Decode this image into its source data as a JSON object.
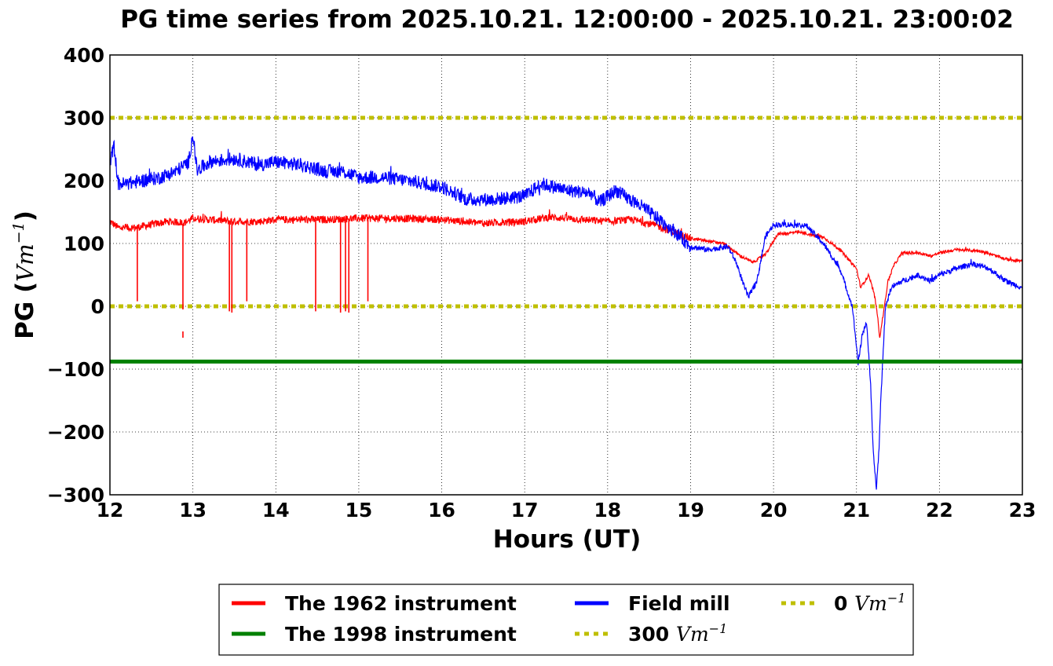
{
  "chart_data": {
    "type": "line",
    "title": "PG time series from 2025.10.21. 12:00:00 - 2025.10.21. 23:00:02",
    "xlabel": "Hours (UT)",
    "ylabel": "PG (",
    "ylabel_unit": "Vm",
    "ylabel_unit_exp": "−1",
    "ylabel_close": ")",
    "xlim": [
      12,
      23
    ],
    "ylim": [
      -300,
      400
    ],
    "xticks": [
      12,
      13,
      14,
      15,
      16,
      17,
      18,
      19,
      20,
      21,
      22,
      23
    ],
    "xtick_labels": [
      "12",
      "13",
      "14",
      "15",
      "16",
      "17",
      "18",
      "19",
      "20",
      "21",
      "22",
      "23"
    ],
    "yticks": [
      -300,
      -200,
      -100,
      0,
      100,
      200,
      300,
      400
    ],
    "ytick_labels": [
      "−300",
      "−200",
      "−100",
      "0",
      "100",
      "200",
      "300",
      "400"
    ],
    "grid": true,
    "legend_placement": "below-center",
    "series": [
      {
        "name": "The 1962 instrument",
        "color": "#ff0000",
        "style": "solid",
        "noise": 6,
        "x": [
          12.0,
          12.1,
          12.3,
          12.5,
          12.7,
          12.9,
          13.0,
          13.2,
          13.5,
          13.8,
          14.0,
          14.3,
          14.6,
          15.0,
          15.5,
          16.0,
          16.5,
          17.0,
          17.3,
          17.7,
          18.0,
          18.3,
          18.6,
          19.0,
          19.4,
          19.6,
          19.75,
          19.9,
          20.05,
          20.3,
          20.6,
          20.8,
          21.0,
          21.05,
          21.15,
          21.22,
          21.25,
          21.28,
          21.32,
          21.38,
          21.45,
          21.55,
          21.75,
          21.9,
          22.0,
          22.2,
          22.5,
          22.8,
          23.0
        ],
        "y": [
          135,
          125,
          125,
          130,
          135,
          133,
          140,
          138,
          135,
          135,
          138,
          138,
          138,
          140,
          140,
          138,
          132,
          135,
          142,
          138,
          135,
          138,
          128,
          108,
          100,
          80,
          70,
          82,
          115,
          118,
          110,
          90,
          60,
          30,
          50,
          15,
          -10,
          -50,
          -15,
          40,
          65,
          85,
          85,
          80,
          85,
          90,
          88,
          75,
          72
        ]
      },
      {
        "name": "Field mill",
        "color": "#0000ff",
        "style": "solid",
        "noise": 11,
        "x": [
          12.0,
          12.05,
          12.1,
          12.2,
          12.4,
          12.6,
          12.8,
          12.95,
          13.0,
          13.05,
          13.2,
          13.5,
          13.8,
          14.0,
          14.3,
          14.6,
          14.8,
          15.0,
          15.3,
          15.6,
          16.0,
          16.3,
          16.6,
          17.0,
          17.2,
          17.5,
          17.8,
          17.9,
          18.0,
          18.1,
          18.2,
          18.4,
          18.6,
          18.8,
          19.0,
          19.2,
          19.45,
          19.55,
          19.65,
          19.7,
          19.8,
          19.9,
          20.0,
          20.2,
          20.4,
          20.6,
          20.8,
          20.95,
          21.02,
          21.08,
          21.12,
          21.17,
          21.2,
          21.24,
          21.27,
          21.3,
          21.35,
          21.42,
          21.55,
          21.65,
          21.75,
          21.9,
          22.0,
          22.2,
          22.4,
          22.6,
          22.8,
          23.0
        ],
        "y": [
          230,
          255,
          195,
          195,
          200,
          205,
          215,
          230,
          275,
          215,
          230,
          235,
          225,
          230,
          225,
          215,
          215,
          205,
          205,
          200,
          190,
          170,
          170,
          175,
          195,
          185,
          180,
          165,
          175,
          185,
          175,
          160,
          140,
          120,
          95,
          90,
          95,
          70,
          30,
          15,
          40,
          110,
          130,
          130,
          128,
          100,
          60,
          0,
          -90,
          -40,
          -25,
          -120,
          -230,
          -290,
          -230,
          -130,
          0,
          30,
          40,
          45,
          50,
          40,
          50,
          60,
          68,
          60,
          40,
          30
        ]
      },
      {
        "name": "The 1998 instrument",
        "color": "#008000",
        "style": "solid",
        "noise": 0,
        "x": [
          12,
          23
        ],
        "y": [
          -88,
          -88
        ]
      },
      {
        "name": "300 Vm−1",
        "color": "#bfbf00",
        "style": "dotted",
        "noise": 0,
        "x": [
          12,
          23
        ],
        "y": [
          300,
          300
        ]
      },
      {
        "name": "0 Vm−1",
        "color": "#bfbf00",
        "style": "dotted",
        "noise": 0,
        "x": [
          12,
          23
        ],
        "y": [
          0,
          0
        ]
      }
    ],
    "spikes_1962": [
      {
        "x": 12.33,
        "y0": 128,
        "y1": 8
      },
      {
        "x": 12.88,
        "y0": 130,
        "y1": -5
      },
      {
        "x": 13.44,
        "y0": 135,
        "y1": -8
      },
      {
        "x": 13.47,
        "y0": 135,
        "y1": -10
      },
      {
        "x": 13.65,
        "y0": 138,
        "y1": 8
      },
      {
        "x": 14.48,
        "y0": 138,
        "y1": -8
      },
      {
        "x": 14.78,
        "y0": 138,
        "y1": -10
      },
      {
        "x": 14.84,
        "y0": 138,
        "y1": -8
      },
      {
        "x": 14.88,
        "y0": 138,
        "y1": -10
      },
      {
        "x": 15.11,
        "y0": 138,
        "y1": 8
      }
    ],
    "points_1962": [
      {
        "x": 12.88,
        "y": -45
      }
    ]
  },
  "legend": {
    "items": [
      {
        "label": "The 1962 instrument",
        "unit": "",
        "unit_exp": ""
      },
      {
        "label": "Field mill",
        "unit": "",
        "unit_exp": ""
      },
      {
        "label": "0 ",
        "unit": "Vm",
        "unit_exp": "−1"
      },
      {
        "label": "The 1998 instrument",
        "unit": "",
        "unit_exp": ""
      },
      {
        "label": "300 ",
        "unit": "Vm",
        "unit_exp": "−1"
      }
    ]
  }
}
